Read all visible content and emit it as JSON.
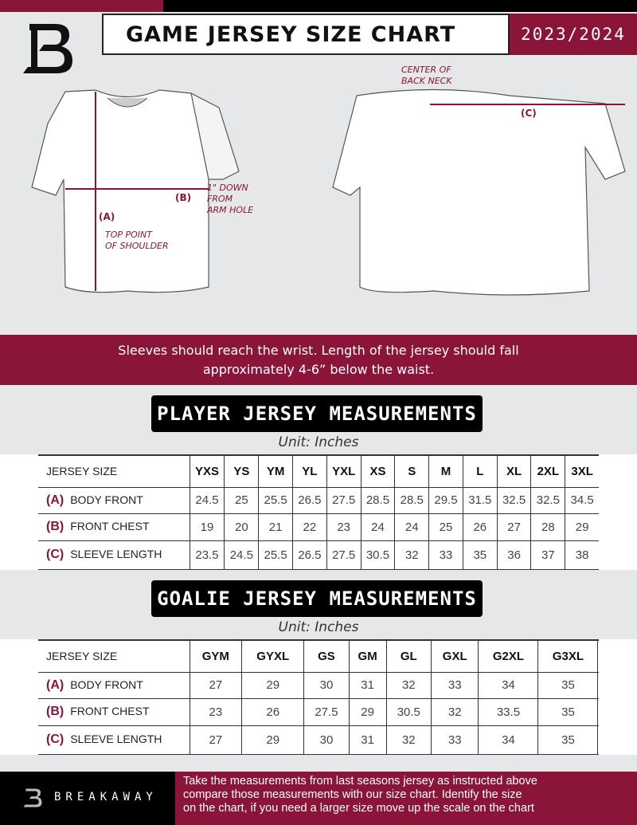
{
  "header": {
    "title": "GAME JERSEY SIZE CHART",
    "season": "2023/2024"
  },
  "colors": {
    "accent": "#8a1538",
    "dark": "#000000",
    "background": "#e6e7e8"
  },
  "diagram": {
    "label_a": "(A)",
    "label_b": "(B)",
    "label_c": "(C)",
    "note_shoulder": [
      "TOP POINT",
      "OF SHOULDER"
    ],
    "note_arm": [
      "1\" DOWN",
      "FROM",
      "ARM HOLE"
    ],
    "note_neck": [
      "CENTER OF",
      "BACK NECK"
    ]
  },
  "instruction": [
    "Sleeves should reach the wrist. Length of the jersey should fall",
    "approximately 4-6” below the waist."
  ],
  "player": {
    "title": "PLAYER JERSEY MEASUREMENTS",
    "unit": "Unit: Inches",
    "header_label": "JERSEY SIZE",
    "sizes": [
      "YXS",
      "YS",
      "YM",
      "YL",
      "YXL",
      "XS",
      "S",
      "M",
      "L",
      "XL",
      "2XL",
      "3XL"
    ],
    "rows": [
      {
        "code": "(A)",
        "name": "BODY FRONT",
        "values": [
          "24.5",
          "25",
          "25.5",
          "26.5",
          "27.5",
          "28.5",
          "28.5",
          "29.5",
          "31.5",
          "32.5",
          "32.5",
          "34.5"
        ]
      },
      {
        "code": "(B)",
        "name": "FRONT CHEST",
        "values": [
          "19",
          "20",
          "21",
          "22",
          "23",
          "24",
          "24",
          "25",
          "26",
          "27",
          "28",
          "29"
        ]
      },
      {
        "code": "(C)",
        "name": "SLEEVE LENGTH",
        "values": [
          "23.5",
          "24.5",
          "25.5",
          "26.5",
          "27.5",
          "30.5",
          "32",
          "33",
          "35",
          "36",
          "37",
          "38"
        ]
      }
    ]
  },
  "goalie": {
    "title": "GOALIE JERSEY MEASUREMENTS",
    "unit": "Unit: Inches",
    "header_label": "JERSEY SIZE",
    "sizes": [
      "GYM",
      "GYXL",
      "GS",
      "GM",
      "GL",
      "GXL",
      "G2XL",
      "G3XL",
      ""
    ],
    "rows": [
      {
        "code": "(A)",
        "name": "BODY FRONT",
        "values": [
          "27",
          "29",
          "30",
          "31",
          "32",
          "33",
          "34",
          "35",
          ""
        ]
      },
      {
        "code": "(B)",
        "name": "FRONT CHEST",
        "values": [
          "23",
          "26",
          "27.5",
          "29",
          "30.5",
          "32",
          "33.5",
          "35",
          ""
        ]
      },
      {
        "code": "(C)",
        "name": "SLEEVE LENGTH",
        "values": [
          "27",
          "29",
          "30",
          "31",
          "32",
          "33",
          "34",
          "35",
          ""
        ]
      }
    ]
  },
  "footer": {
    "brand": "BREAKAWAY",
    "text": [
      "Take the measurements from last seasons jersey as instructed above",
      "compare those measurements  with our size chart. Identify the size",
      "on the chart, if you need a larger size move up the scale on the chart"
    ]
  }
}
